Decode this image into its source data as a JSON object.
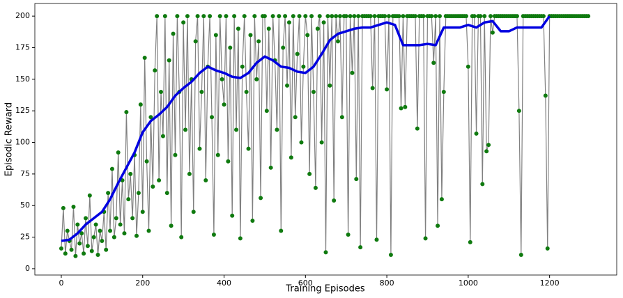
{
  "chart_data": {
    "type": "line",
    "xlabel": "Training Episodes",
    "ylabel": "Episodic Reward",
    "xlim": [
      -65,
      1365
    ],
    "ylim": [
      -5,
      210
    ],
    "xticks": [
      0,
      200,
      400,
      600,
      800,
      1000,
      1200
    ],
    "yticks": [
      0,
      25,
      50,
      75,
      100,
      125,
      150,
      175,
      200
    ],
    "series": [
      {
        "color": "#808080",
        "marker_color": "#0f7a0f",
        "marker": true,
        "x": [
          0,
          5,
          10,
          15,
          20,
          25,
          30,
          35,
          40,
          45,
          50,
          55,
          60,
          65,
          70,
          75,
          80,
          85,
          90,
          95,
          100,
          105,
          110,
          115,
          120,
          125,
          130,
          135,
          140,
          145,
          150,
          155,
          160,
          165,
          170,
          175,
          180,
          185,
          190,
          195,
          200,
          205,
          210,
          215,
          220,
          225,
          230,
          235,
          240,
          245,
          250,
          255,
          260,
          265,
          270,
          275,
          280,
          285,
          290,
          295,
          300,
          305,
          310,
          315,
          320,
          325,
          330,
          335,
          340,
          345,
          350,
          355,
          360,
          365,
          370,
          375,
          380,
          385,
          390,
          395,
          400,
          405,
          410,
          415,
          420,
          425,
          430,
          435,
          440,
          445,
          450,
          455,
          460,
          465,
          470,
          475,
          480,
          485,
          490,
          495,
          500,
          505,
          510,
          515,
          520,
          525,
          530,
          535,
          540,
          545,
          550,
          555,
          560,
          565,
          570,
          575,
          580,
          585,
          590,
          595,
          600,
          605,
          610,
          615,
          620,
          625,
          630,
          635,
          640,
          645,
          650,
          655,
          660,
          665,
          670,
          675,
          680,
          685,
          690,
          695,
          700,
          705,
          710,
          715,
          720,
          725,
          730,
          735,
          740,
          745,
          750,
          755,
          760,
          765,
          770,
          775,
          780,
          785,
          790,
          795,
          800,
          805,
          810,
          815,
          820,
          825,
          830,
          835,
          840,
          845,
          850,
          855,
          860,
          865,
          870,
          875,
          880,
          885,
          890,
          895,
          900,
          905,
          910,
          915,
          920,
          925,
          930,
          935,
          940,
          945,
          950,
          955,
          960,
          965,
          970,
          975,
          980,
          985,
          990,
          995,
          1000,
          1005,
          1010,
          1015,
          1020,
          1025,
          1030,
          1035,
          1040,
          1045,
          1050,
          1055,
          1060,
          1065,
          1070,
          1075,
          1080,
          1085,
          1090,
          1095,
          1100,
          1105,
          1110,
          1115,
          1120,
          1125,
          1130,
          1135,
          1140,
          1145,
          1150,
          1155,
          1160,
          1165,
          1170,
          1175,
          1180,
          1185,
          1190,
          1195,
          1200,
          1205,
          1210,
          1215,
          1220,
          1225,
          1230,
          1235,
          1240,
          1245,
          1250,
          1255,
          1260,
          1265,
          1270,
          1275,
          1280,
          1285,
          1290,
          1295
        ],
        "values": [
          16,
          48,
          12,
          30,
          22,
          15,
          49,
          10,
          35,
          20,
          28,
          12,
          40,
          18,
          58,
          14,
          25,
          35,
          11,
          30,
          22,
          45,
          15,
          60,
          30,
          79,
          25,
          40,
          92,
          35,
          70,
          28,
          124,
          55,
          75,
          40,
          90,
          26,
          60,
          130,
          45,
          167,
          85,
          30,
          120,
          65,
          157,
          200,
          70,
          140,
          105,
          200,
          60,
          165,
          34,
          186,
          90,
          200,
          140,
          25,
          195,
          110,
          200,
          75,
          150,
          45,
          180,
          200,
          95,
          140,
          200,
          70,
          160,
          200,
          120,
          27,
          185,
          90,
          200,
          150,
          130,
          200,
          85,
          175,
          42,
          200,
          110,
          190,
          24,
          160,
          200,
          140,
          95,
          185,
          38,
          200,
          150,
          180,
          56,
          200,
          200,
          125,
          190,
          80,
          200,
          165,
          110,
          200,
          30,
          175,
          200,
          145,
          195,
          88,
          200,
          120,
          170,
          200,
          100,
          160,
          200,
          185,
          75,
          200,
          140,
          64,
          190,
          200,
          100,
          195,
          13,
          200,
          145,
          200,
          54,
          200,
          180,
          200,
          120,
          200,
          200,
          27,
          200,
          155,
          200,
          71,
          200,
          17,
          200,
          200,
          200,
          200,
          200,
          143,
          200,
          23,
          200,
          200,
          200,
          200,
          142,
          200,
          11,
          200,
          200,
          200,
          200,
          127,
          200,
          128,
          200,
          200,
          200,
          200,
          200,
          111,
          200,
          200,
          200,
          24,
          200,
          200,
          200,
          163,
          200,
          34,
          200,
          55,
          140,
          200,
          200,
          200,
          200,
          200,
          200,
          200,
          200,
          200,
          200,
          200,
          160,
          21,
          200,
          200,
          107,
          200,
          200,
          67,
          200,
          93,
          98,
          200,
          187,
          200,
          200,
          200,
          200,
          200,
          200,
          200,
          200,
          200,
          200,
          200,
          200,
          125,
          11,
          200,
          200,
          200,
          200,
          200,
          200,
          200,
          200,
          200,
          200,
          200,
          137,
          16,
          200,
          200,
          200,
          200,
          200,
          200,
          200,
          200,
          200,
          200,
          200,
          200,
          200,
          200,
          200,
          200,
          200,
          200,
          200,
          200
        ]
      },
      {
        "color": "#0000e0",
        "marker": false,
        "x": [
          0,
          20,
          40,
          60,
          80,
          100,
          120,
          140,
          160,
          180,
          200,
          220,
          240,
          260,
          280,
          300,
          320,
          340,
          360,
          380,
          400,
          420,
          440,
          460,
          480,
          500,
          520,
          540,
          560,
          580,
          600,
          620,
          640,
          660,
          680,
          700,
          720,
          740,
          760,
          780,
          800,
          820,
          840,
          860,
          880,
          900,
          920,
          940,
          960,
          980,
          1000,
          1020,
          1040,
          1060,
          1080,
          1100,
          1120,
          1140,
          1160,
          1180,
          1200
        ],
        "values": [
          22,
          23,
          28,
          35,
          40,
          45,
          55,
          68,
          80,
          92,
          108,
          117,
          122,
          128,
          137,
          143,
          148,
          155,
          160,
          157,
          155,
          152,
          151,
          155,
          163,
          168,
          165,
          160,
          159,
          156,
          155,
          160,
          170,
          181,
          186,
          188,
          190,
          191,
          191,
          193,
          195,
          193,
          177,
          177,
          177,
          178,
          177,
          191,
          191,
          191,
          193,
          191,
          195,
          196,
          188,
          188,
          191,
          191,
          191,
          191,
          200
        ]
      }
    ]
  }
}
